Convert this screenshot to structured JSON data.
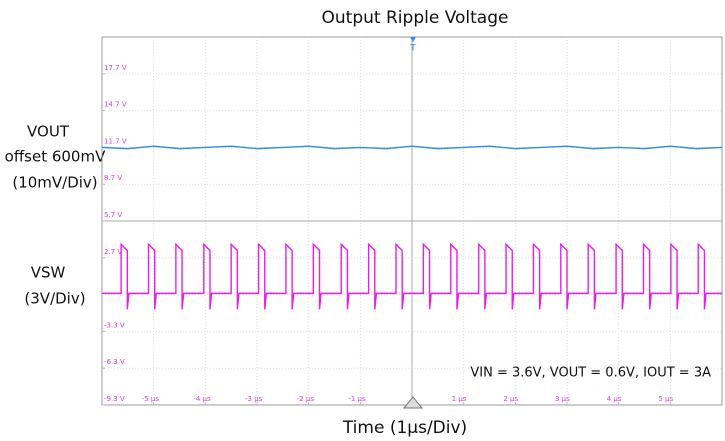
{
  "chart_data": {
    "type": "line",
    "title": "Output Ripple Voltage",
    "x_label": "Time (1µs/Div)",
    "annotations": [
      "VOUT",
      "offset 600mV",
      "(10mV/Div)",
      "VSW",
      "(3V/Div)",
      "VIN = 3.6V, VOUT = 0.6V, IOUT = 3A"
    ],
    "trigger_label": "T",
    "xlim": [
      -6,
      6
    ],
    "ylim": [
      -9.3,
      20.7
    ],
    "xticks": [
      {
        "value": -5,
        "label": "-5 µs"
      },
      {
        "value": -4,
        "label": "-4 µs"
      },
      {
        "value": -3,
        "label": "-3 µs"
      },
      {
        "value": -2,
        "label": "-2 µs"
      },
      {
        "value": -1,
        "label": "-1 µs"
      },
      {
        "value": 1,
        "label": "1 µs"
      },
      {
        "value": 2,
        "label": "2 µs"
      },
      {
        "value": 3,
        "label": "3 µs"
      },
      {
        "value": 4,
        "label": "4 µs"
      },
      {
        "value": 5,
        "label": "5 µs"
      }
    ],
    "yticks": [
      {
        "value": 17.7,
        "label": "17.7 V"
      },
      {
        "value": 14.7,
        "label": "14.7 V"
      },
      {
        "value": 11.7,
        "label": "11.7 V"
      },
      {
        "value": 8.7,
        "label": "8.7 V"
      },
      {
        "value": 5.7,
        "label": "5.7 V"
      },
      {
        "value": 2.7,
        "label": "2.7 V"
      },
      {
        "value": -3.3,
        "label": "-3.3 V"
      },
      {
        "value": -6.3,
        "label": "-6.3 V"
      },
      {
        "value": -9.3,
        "label": "-9.3 V"
      }
    ],
    "tick_color": "#d83cd8",
    "series": [
      {
        "name": "VOUT",
        "color": "#2f8ce6",
        "x": [
          -6,
          -5.5,
          -5,
          -4.5,
          -4,
          -3.5,
          -3,
          -2.5,
          -2,
          -1.5,
          -1,
          -0.5,
          0,
          0.5,
          1,
          1.5,
          2,
          2.5,
          3,
          3.5,
          4,
          4.5,
          5,
          5.5,
          6
        ],
        "values": [
          11.7,
          11.6,
          11.8,
          11.6,
          11.7,
          11.8,
          11.6,
          11.7,
          11.8,
          11.6,
          11.7,
          11.6,
          11.8,
          11.6,
          11.7,
          11.8,
          11.6,
          11.7,
          11.8,
          11.6,
          11.7,
          11.6,
          11.8,
          11.6,
          11.7
        ]
      },
      {
        "name": "VSW",
        "color": "#e81ee8",
        "x": [
          -6,
          -5.63,
          -5.63,
          -5.51,
          -5.51,
          -5.48,
          -5.1,
          -5.1,
          -4.98,
          -4.98,
          -4.95,
          -4.57,
          -4.57,
          -4.45,
          -4.45,
          -4.42,
          -4.03,
          -4.03,
          -3.91,
          -3.91,
          -3.88,
          -3.5,
          -3.5,
          -3.38,
          -3.38,
          -3.35,
          -2.97,
          -2.97,
          -2.85,
          -2.85,
          -2.82,
          -2.44,
          -2.44,
          -2.32,
          -2.32,
          -2.29,
          -1.91,
          -1.91,
          -1.79,
          -1.79,
          -1.76,
          -1.37,
          -1.37,
          -1.25,
          -1.25,
          -1.22,
          -0.84,
          -0.84,
          -0.72,
          -0.72,
          -0.69,
          -0.31,
          -0.31,
          -0.19,
          -0.19,
          -0.16,
          0.22,
          0.22,
          0.34,
          0.34,
          0.37,
          0.75,
          0.75,
          0.87,
          0.87,
          0.9,
          1.29,
          1.29,
          1.41,
          1.41,
          1.44,
          1.82,
          1.82,
          1.94,
          1.94,
          1.97,
          2.35,
          2.35,
          2.47,
          2.47,
          2.5,
          2.88,
          2.88,
          3,
          3,
          3.03,
          3.41,
          3.41,
          3.53,
          3.53,
          3.56,
          3.95,
          3.95,
          4.07,
          4.07,
          4.1,
          4.48,
          4.48,
          4.6,
          4.6,
          4.63,
          5.01,
          5.01,
          5.13,
          5.13,
          5.16,
          5.54,
          5.54,
          5.66,
          5.66,
          5.69,
          6
        ],
        "values": [
          -0.2,
          -0.2,
          3.8,
          3.3,
          -1.5,
          -0.2,
          -0.2,
          3.8,
          3.3,
          -1.5,
          -0.2,
          -0.2,
          3.8,
          3.3,
          -1.5,
          -0.2,
          -0.2,
          3.8,
          3.3,
          -1.5,
          -0.2,
          -0.2,
          3.8,
          3.3,
          -1.5,
          -0.2,
          -0.2,
          3.8,
          3.3,
          -1.5,
          -0.2,
          -0.2,
          3.8,
          3.3,
          -1.5,
          -0.2,
          -0.2,
          3.8,
          3.3,
          -1.5,
          -0.2,
          -0.2,
          3.8,
          3.3,
          -1.5,
          -0.2,
          -0.2,
          3.8,
          3.3,
          -1.5,
          -0.2,
          -0.2,
          3.8,
          3.3,
          -1.5,
          -0.2,
          -0.2,
          3.8,
          3.3,
          -1.5,
          -0.2,
          -0.2,
          3.8,
          3.3,
          -1.5,
          -0.2,
          -0.2,
          3.8,
          3.3,
          -1.5,
          -0.2,
          -0.2,
          3.8,
          3.3,
          -1.5,
          -0.2,
          -0.2,
          3.8,
          3.3,
          -1.5,
          -0.2,
          -0.2,
          3.8,
          3.3,
          -1.5,
          -0.2,
          -0.2,
          3.8,
          3.3,
          -1.5,
          -0.2,
          -0.2,
          3.8,
          3.3,
          -1.5,
          -0.2,
          -0.2,
          3.8,
          3.3,
          -1.5,
          -0.2,
          -0.2,
          3.8,
          3.3,
          -1.5,
          -0.2,
          -0.2,
          3.8,
          3.3,
          -1.5,
          -0.2,
          -0.2
        ]
      }
    ]
  }
}
